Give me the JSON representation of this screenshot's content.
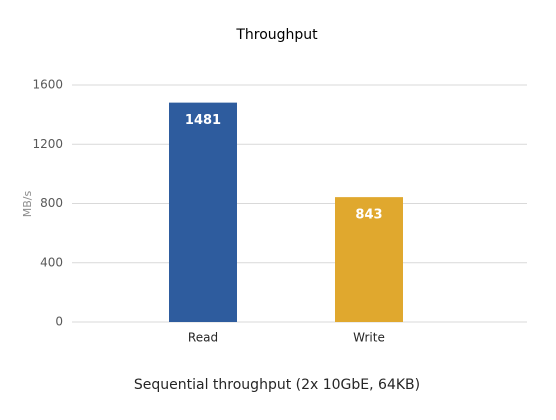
{
  "chart_data": {
    "type": "bar",
    "title": "Throughput",
    "categories": [
      "Read",
      "Write"
    ],
    "values": [
      1481,
      843
    ],
    "colors": [
      "#2e5c9e",
      "#e0a82e"
    ],
    "y_label": "MB/s",
    "x_label": "Sequential throughput (2x 10GbE, 64KB)",
    "ylim": [
      0,
      1600
    ],
    "yticks": [
      0,
      400,
      800,
      1200,
      1600
    ],
    "grid": true
  }
}
